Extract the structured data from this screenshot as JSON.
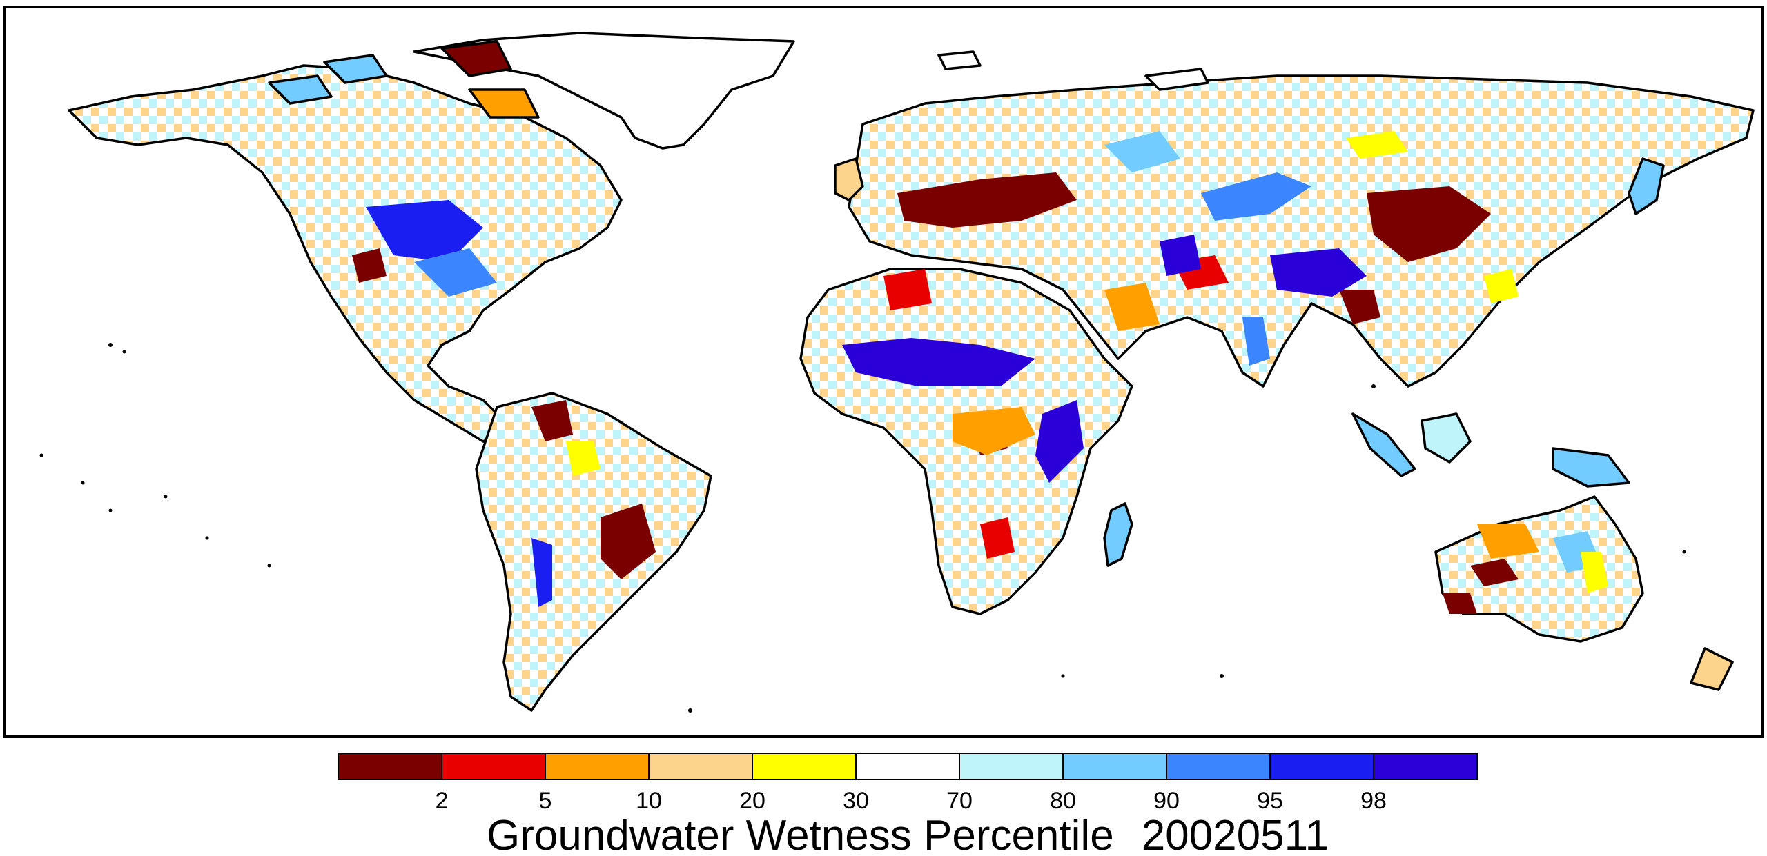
{
  "legend": {
    "title": "Groundwater Wetness Percentile",
    "date": "20020511",
    "bins": [
      {
        "color": "#7a0000"
      },
      {
        "color": "#e80000"
      },
      {
        "color": "#ffa000"
      },
      {
        "color": "#fdd48c"
      },
      {
        "color": "#ffff00"
      },
      {
        "color": "#ffffff"
      },
      {
        "color": "#bff4fb"
      },
      {
        "color": "#72ccff"
      },
      {
        "color": "#3b86ff"
      },
      {
        "color": "#1a1ef0"
      },
      {
        "color": "#2b00d8"
      }
    ],
    "labels": [
      "2",
      "5",
      "10",
      "20",
      "30",
      "70",
      "80",
      "90",
      "95",
      "98"
    ]
  },
  "colors": {
    "dry_extreme": "#7a0000",
    "dry": "#e80000",
    "wet": "#3b86ff",
    "wet_extreme": "#2b00d8",
    "coastline": "#000000"
  }
}
